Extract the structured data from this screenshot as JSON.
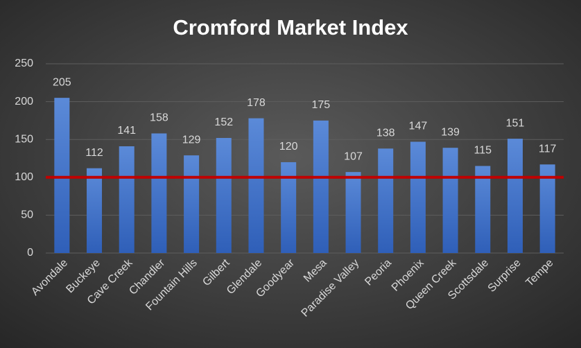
{
  "chart_data": {
    "type": "bar",
    "title": "Cromford Market Index",
    "categories": [
      "Avondale",
      "Buckeye",
      "Cave Creek",
      "Chandler",
      "Fountain Hills",
      "Gilbert",
      "Glendale",
      "Goodyear",
      "Mesa",
      "Paradise Valley",
      "Peoria",
      "Phoenix",
      "Queen Creek",
      "Scottsdale",
      "Surprise",
      "Tempe"
    ],
    "values": [
      205,
      112,
      141,
      158,
      129,
      152,
      178,
      120,
      175,
      107,
      138,
      147,
      139,
      115,
      151,
      117
    ],
    "color": "#4472c4",
    "ylim": [
      0,
      250
    ],
    "yticks": [
      0,
      50,
      100,
      150,
      200,
      250
    ],
    "grid": true,
    "reference_line": {
      "value": 100,
      "color": "#c00000"
    }
  }
}
